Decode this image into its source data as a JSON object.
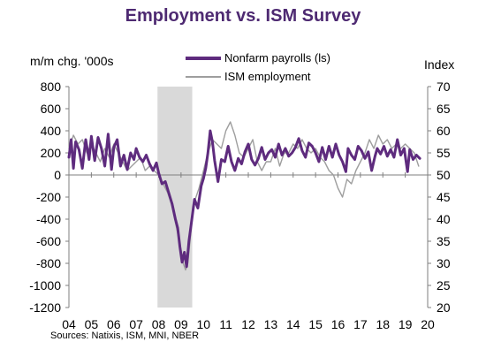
{
  "chart_data": {
    "type": "line",
    "title": "Employment vs. ISM Survey",
    "ylabel_left": "m/m chg. '000s",
    "ylabel_right": "Index",
    "source": "Sources:   Natixis, ISM, MNI, NBER",
    "ylim_left": [
      -1200,
      800
    ],
    "ylim_right": [
      20,
      70
    ],
    "yticks_left": [
      "800",
      "600",
      "400",
      "200",
      "0",
      "-200",
      "-400",
      "-600",
      "-800",
      "-1000",
      "-1200"
    ],
    "yticks_right": [
      "70",
      "65",
      "60",
      "55",
      "50",
      "45",
      "40",
      "35",
      "30",
      "25",
      "20"
    ],
    "xticks": [
      "04",
      "05",
      "06",
      "07",
      "08",
      "09",
      "10",
      "11",
      "12",
      "13",
      "14",
      "15",
      "16",
      "17",
      "18",
      "19",
      "20"
    ],
    "xlim": [
      2004.0,
      2020.0
    ],
    "legend": {
      "position": "top-center"
    },
    "recession": {
      "start": 2007.95,
      "end": 2009.5
    },
    "colors": {
      "payrolls": "#5e2b7e",
      "ism": "#9e9e9e",
      "recession": "#d9d9d9"
    },
    "series": [
      {
        "name": "Nonfarm payrolls (ls)",
        "axis": "left",
        "x": [
          2004.0,
          2004.1,
          2004.2,
          2004.3,
          2004.45,
          2004.6,
          2004.75,
          2004.9,
          2005.0,
          2005.15,
          2005.3,
          2005.45,
          2005.6,
          2005.75,
          2005.9,
          2006.0,
          2006.15,
          2006.3,
          2006.45,
          2006.6,
          2006.75,
          2006.9,
          2007.0,
          2007.15,
          2007.3,
          2007.45,
          2007.6,
          2007.75,
          2007.9,
          2008.0,
          2008.15,
          2008.3,
          2008.45,
          2008.6,
          2008.75,
          2008.85,
          2008.95,
          2009.05,
          2009.15,
          2009.25,
          2009.35,
          2009.45,
          2009.6,
          2009.75,
          2009.9,
          2010.0,
          2010.1,
          2010.2,
          2010.3,
          2010.4,
          2010.5,
          2010.65,
          2010.8,
          2010.95,
          2011.1,
          2011.25,
          2011.4,
          2011.55,
          2011.7,
          2011.85,
          2012.0,
          2012.15,
          2012.3,
          2012.45,
          2012.6,
          2012.75,
          2012.9,
          2013.05,
          2013.2,
          2013.35,
          2013.5,
          2013.65,
          2013.8,
          2013.95,
          2014.1,
          2014.25,
          2014.4,
          2014.55,
          2014.7,
          2014.85,
          2015.0,
          2015.15,
          2015.3,
          2015.45,
          2015.6,
          2015.75,
          2015.9,
          2016.05,
          2016.2,
          2016.35,
          2016.45,
          2016.6,
          2016.75,
          2016.9,
          2017.05,
          2017.2,
          2017.35,
          2017.5,
          2017.65,
          2017.75,
          2017.9,
          2018.05,
          2018.2,
          2018.35,
          2018.5,
          2018.65,
          2018.8,
          2018.95,
          2019.1,
          2019.2,
          2019.35,
          2019.5,
          2019.65
        ],
        "values": [
          160,
          320,
          60,
          300,
          230,
          60,
          320,
          140,
          350,
          130,
          340,
          240,
          80,
          370,
          50,
          250,
          320,
          80,
          180,
          50,
          200,
          140,
          240,
          160,
          120,
          180,
          100,
          40,
          110,
          20,
          -80,
          -60,
          -160,
          -260,
          -400,
          -480,
          -650,
          -790,
          -700,
          -830,
          -600,
          -450,
          -220,
          -300,
          -100,
          -30,
          60,
          200,
          400,
          300,
          130,
          -60,
          140,
          120,
          260,
          120,
          40,
          150,
          100,
          210,
          280,
          140,
          90,
          150,
          250,
          140,
          200,
          230,
          160,
          280,
          180,
          240,
          170,
          200,
          250,
          330,
          220,
          160,
          290,
          260,
          200,
          120,
          250,
          140,
          260,
          160,
          280,
          180,
          120,
          30,
          240,
          180,
          140,
          260,
          220,
          150,
          210,
          40,
          170,
          240,
          190,
          260,
          170,
          230,
          160,
          320,
          180,
          240,
          30,
          230,
          140,
          180,
          150
        ]
      },
      {
        "name": "ISM employment",
        "axis": "right",
        "x": [
          2004.0,
          2004.2,
          2004.4,
          2004.6,
          2004.8,
          2005.0,
          2005.2,
          2005.4,
          2005.6,
          2005.8,
          2006.0,
          2006.2,
          2006.4,
          2006.6,
          2006.8,
          2007.0,
          2007.2,
          2007.4,
          2007.6,
          2007.8,
          2008.0,
          2008.2,
          2008.4,
          2008.6,
          2008.8,
          2009.0,
          2009.1,
          2009.2,
          2009.3,
          2009.4,
          2009.5,
          2009.6,
          2009.8,
          2010.0,
          2010.2,
          2010.4,
          2010.6,
          2010.8,
          2011.0,
          2011.2,
          2011.4,
          2011.6,
          2011.8,
          2012.0,
          2012.2,
          2012.4,
          2012.6,
          2012.8,
          2013.0,
          2013.2,
          2013.4,
          2013.6,
          2013.8,
          2014.0,
          2014.2,
          2014.4,
          2014.6,
          2014.8,
          2015.0,
          2015.2,
          2015.4,
          2015.6,
          2015.8,
          2016.0,
          2016.2,
          2016.4,
          2016.6,
          2016.8,
          2017.0,
          2017.2,
          2017.4,
          2017.6,
          2017.8,
          2018.0,
          2018.2,
          2018.4,
          2018.6,
          2018.8,
          2019.0,
          2019.2,
          2019.4,
          2019.6
        ],
        "values": [
          56,
          59,
          57,
          58,
          55,
          57,
          55,
          53,
          56,
          54,
          57,
          55,
          53,
          51,
          52,
          53,
          54,
          51,
          52,
          51,
          50,
          48,
          46,
          43,
          38,
          33,
          30,
          28.5,
          30,
          35,
          41,
          44,
          47,
          51,
          55,
          58,
          57,
          56,
          60,
          62,
          59,
          55,
          54,
          56,
          58,
          53,
          51,
          53,
          53,
          56,
          52,
          55,
          55,
          57,
          56,
          58,
          56,
          55,
          56,
          54,
          53,
          51,
          50,
          47,
          45,
          49,
          48,
          51,
          53,
          55,
          58,
          56,
          59,
          57,
          58,
          56,
          57,
          56,
          57,
          56,
          55,
          52
        ]
      }
    ]
  }
}
